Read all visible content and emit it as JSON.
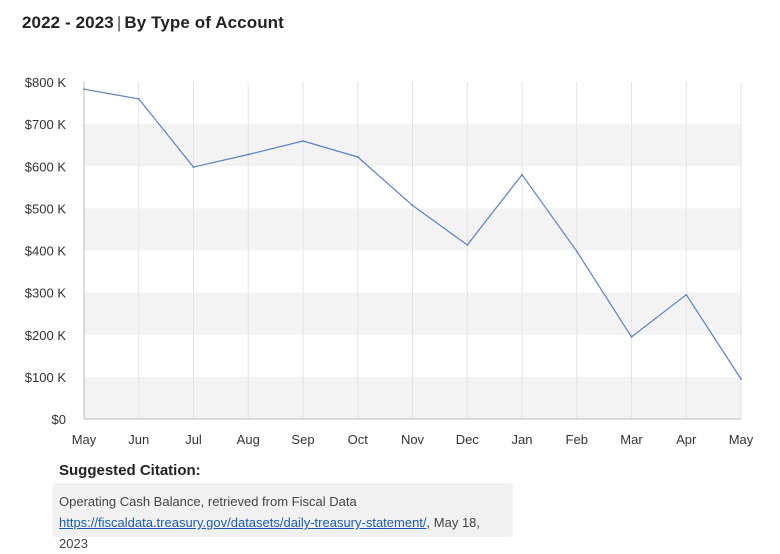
{
  "header": {
    "range": "2022 - 2023",
    "separator": "|",
    "subtitle": "By Type of Account"
  },
  "colors": {
    "line": "#5b82c3",
    "band": "#f3f3f3",
    "grid": "#e3e3e3",
    "axis": "#bdbdbd",
    "link": "#1a5ab5"
  },
  "chart_data": {
    "type": "line",
    "categories": [
      "May",
      "Jun",
      "Jul",
      "Aug",
      "Sep",
      "Oct",
      "Nov",
      "Dec",
      "Jan",
      "Feb",
      "Mar",
      "Apr",
      "May"
    ],
    "series": [
      {
        "values": [
          783000,
          760000,
          598000,
          628000,
          660000,
          622000,
          507000,
          413000,
          580000,
          398000,
          195000,
          295000,
          95000
        ]
      }
    ],
    "ylim": [
      0,
      800000
    ],
    "yticks": [
      0,
      100000,
      200000,
      300000,
      400000,
      500000,
      600000,
      700000,
      800000
    ],
    "ytick_labels": [
      "$0",
      "$100 K",
      "$200 K",
      "$300 K",
      "$400 K",
      "$500 K",
      "$600 K",
      "$700 K",
      "$800 K"
    ],
    "grid": true,
    "alternating_bands": true
  },
  "citation": {
    "label": "Suggested Citation:",
    "text": "Operating Cash Balance, retrieved from Fiscal Data",
    "link": "https://fiscaldata.treasury.gov/datasets/daily-treasury-statement/",
    "date": ", May 18, 2023"
  }
}
